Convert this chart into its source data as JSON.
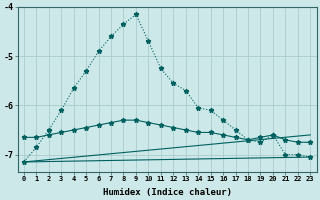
{
  "xlabel": "Humidex (Indice chaleur)",
  "background_color": "#cce8e8",
  "grid_color": "#aacccc",
  "line_color": "#006060",
  "xlim": [
    -0.5,
    23.5
  ],
  "ylim": [
    -7.35,
    -4.35
  ],
  "yticks": [
    -7,
    -6,
    -5,
    -4
  ],
  "xticks": [
    0,
    1,
    2,
    3,
    4,
    5,
    6,
    7,
    8,
    9,
    10,
    11,
    12,
    13,
    14,
    15,
    16,
    17,
    18,
    19,
    20,
    21,
    22,
    23
  ],
  "series1_x": [
    0,
    1,
    2,
    3,
    4,
    5,
    6,
    7,
    8,
    9,
    10,
    11,
    12,
    13,
    14,
    15,
    16,
    17,
    18,
    19,
    20,
    21,
    22,
    23
  ],
  "series1_y": [
    -7.15,
    -6.85,
    -6.5,
    -6.1,
    -5.65,
    -5.3,
    -4.9,
    -4.6,
    -4.35,
    -4.15,
    -4.7,
    -5.25,
    -5.55,
    -5.7,
    -6.05,
    -6.1,
    -6.3,
    -6.5,
    -6.7,
    -6.75,
    -6.6,
    -7.0,
    -7.0,
    -7.05
  ],
  "series2_x": [
    0,
    1,
    2,
    3,
    4,
    5,
    6,
    7,
    8,
    9,
    10,
    11,
    12,
    13,
    14,
    15,
    16,
    17,
    18,
    19,
    20,
    21,
    22,
    23
  ],
  "series2_y": [
    -6.65,
    -6.65,
    -6.6,
    -6.55,
    -6.5,
    -6.45,
    -6.4,
    -6.35,
    -6.3,
    -6.3,
    -6.35,
    -6.4,
    -6.45,
    -6.5,
    -6.55,
    -6.55,
    -6.6,
    -6.65,
    -6.7,
    -6.65,
    -6.6,
    -6.7,
    -6.75,
    -6.75
  ],
  "series3_x": [
    0,
    23
  ],
  "series3_y": [
    -7.15,
    -7.05
  ],
  "series4_x": [
    0,
    23
  ],
  "series4_y": [
    -7.15,
    -6.6
  ]
}
